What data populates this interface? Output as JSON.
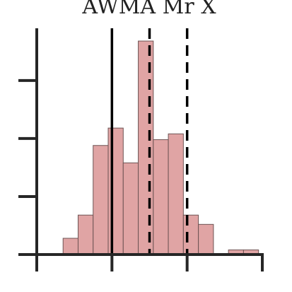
{
  "chart_data": {
    "type": "bar",
    "title": "AWMA Mr X",
    "xlabel": "",
    "ylabel": "",
    "bar_color": "#e0a4a4",
    "edge_color": "#6e5454",
    "xlim": [
      0,
      3
    ],
    "ylim": [
      0,
      19.5
    ],
    "x_ticks": [
      0,
      1,
      2,
      3
    ],
    "y_ticks": [
      0,
      5,
      10,
      15
    ],
    "bin_width": 0.2,
    "bins": [
      {
        "x0": 0.35,
        "value": 1.4
      },
      {
        "x0": 0.55,
        "value": 3.4
      },
      {
        "x0": 0.75,
        "value": 9.4
      },
      {
        "x0": 0.95,
        "value": 10.9
      },
      {
        "x0": 1.15,
        "value": 7.9
      },
      {
        "x0": 1.35,
        "value": 18.4
      },
      {
        "x0": 1.55,
        "value": 9.9
      },
      {
        "x0": 1.75,
        "value": 10.4
      },
      {
        "x0": 1.95,
        "value": 3.4
      },
      {
        "x0": 2.15,
        "value": 2.6
      },
      {
        "x0": 2.55,
        "value": 0.4
      },
      {
        "x0": 2.75,
        "value": 0.4
      }
    ],
    "reference_lines": [
      {
        "x": 1.0,
        "style": "solid"
      },
      {
        "x": 1.5,
        "style": "dashed"
      },
      {
        "x": 2.0,
        "style": "dashed"
      }
    ],
    "grid": false,
    "legend": "none"
  }
}
